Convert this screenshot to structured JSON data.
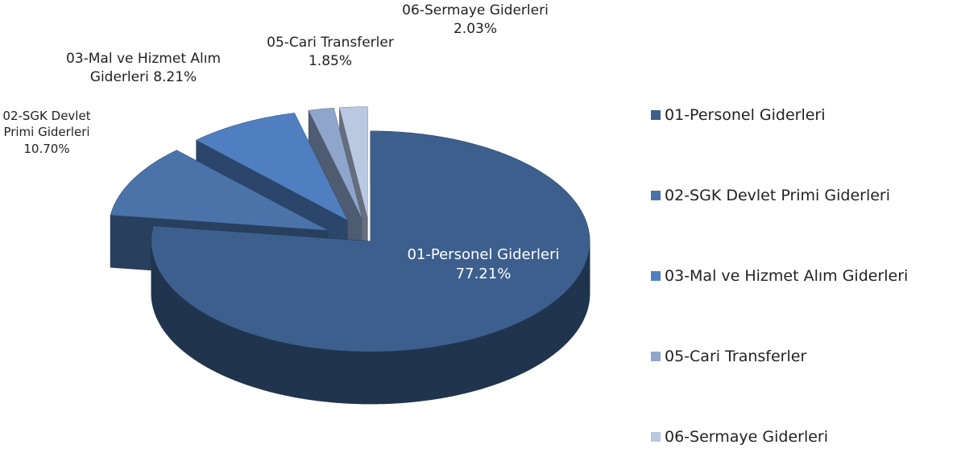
{
  "chart_data": {
    "type": "pie3d",
    "categories": [
      "01-Personel Giderleri",
      "02-SGK Devlet Primi Giderleri",
      "03-Mal ve Hizmet Alım Giderleri",
      "05-Cari Transferler",
      "06-Sermaye Giderleri"
    ],
    "values": [
      77.21,
      10.7,
      8.21,
      1.85,
      2.03
    ],
    "value_labels": [
      "77.21%",
      "10.70%",
      "8.21%",
      "1.85%",
      "2.03%"
    ],
    "colors": [
      "#3c5f8e",
      "#4a73aa",
      "#4f7fc0",
      "#8fa5cb",
      "#bac8e2"
    ],
    "legend": "right"
  }
}
